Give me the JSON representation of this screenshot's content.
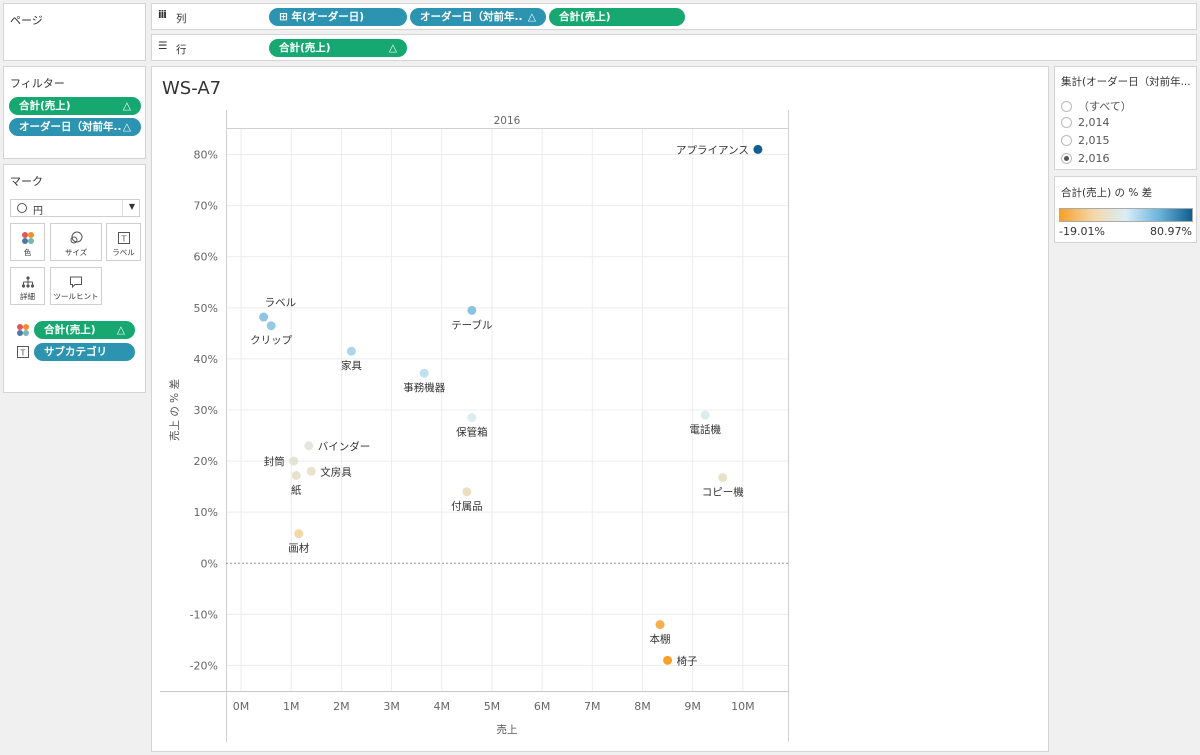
{
  "pages_panel": {
    "title": "ページ"
  },
  "columns_shelf": {
    "label": "列",
    "pills": [
      {
        "label": "⊞ 年(オーダー日)",
        "color": "#2c93b0",
        "delta": ""
      },
      {
        "label": "オーダー日（対前年..",
        "color": "#2c93b0",
        "delta": "△"
      },
      {
        "label": "合計(売上)",
        "color": "#17a872",
        "delta": ""
      }
    ]
  },
  "rows_shelf": {
    "label": "行",
    "pills": [
      {
        "label": "合計(売上)",
        "color": "#17a872",
        "delta": "△"
      }
    ]
  },
  "filters": {
    "title": "フィルター",
    "pills": [
      {
        "label": "合計(売上)",
        "color": "#17a872",
        "delta": "△"
      },
      {
        "label": "オーダー日（対前年..",
        "color": "#2c93b0",
        "delta": "△"
      }
    ]
  },
  "marks": {
    "title": "マーク",
    "mark_type": "円",
    "buttons": [
      {
        "label": "色",
        "icon": "color-dots-icon"
      },
      {
        "label": "サイズ",
        "icon": "size-icon"
      },
      {
        "label": "ラベル",
        "icon": "label-icon"
      },
      {
        "label": "詳細",
        "icon": "detail-icon"
      },
      {
        "label": "ツールヒント",
        "icon": "tooltip-icon"
      }
    ],
    "fields": [
      {
        "label": "合計(売上)",
        "color": "#17a872",
        "delta": "△",
        "icon": "color-dots-icon"
      },
      {
        "label": "サブカテゴリ",
        "color": "#2c93b0",
        "delta": "",
        "icon": "label-icon"
      }
    ]
  },
  "worksheet": {
    "title": "WS-A7",
    "column_header": "2016"
  },
  "filter_card": {
    "title": "集計(オーダー日（対前年...",
    "options": [
      "（すべて）",
      "2,014",
      "2,015",
      "2,016"
    ],
    "selected": "2,016"
  },
  "legend_card": {
    "title": "合計(売上) の % 差",
    "min_label": "-19.01%",
    "max_label": "80.97%",
    "gradient": [
      "#f7a02a",
      "#f5d7a8",
      "#d9eef7",
      "#6bb4dc",
      "#0e5f8f"
    ]
  },
  "chart_data": {
    "type": "scatter",
    "title": "WS-A7",
    "xlabel": "売上",
    "ylabel": "売上 の % 差",
    "xlim": [
      -0.3,
      10.9
    ],
    "ylim": [
      -25,
      85
    ],
    "x_ticks": [
      "0M",
      "1M",
      "2M",
      "3M",
      "4M",
      "5M",
      "6M",
      "7M",
      "8M",
      "9M",
      "10M"
    ],
    "y_ticks": [
      "-20%",
      "-10%",
      "0%",
      "10%",
      "20%",
      "30%",
      "40%",
      "50%",
      "60%",
      "70%",
      "80%"
    ],
    "x_unit": "M",
    "grid": true,
    "reference_line_y": 0,
    "points": [
      {
        "label": "アプライアンス",
        "x": 10.3,
        "y": 81,
        "label_pos": "left"
      },
      {
        "label": "ラベル",
        "x": 0.45,
        "y": 48.2,
        "label_pos": "above-right"
      },
      {
        "label": "クリップ",
        "x": 0.6,
        "y": 46.5,
        "label_pos": "below"
      },
      {
        "label": "テーブル",
        "x": 4.6,
        "y": 49.5,
        "label_pos": "below"
      },
      {
        "label": "家具",
        "x": 2.2,
        "y": 41.5,
        "label_pos": "below"
      },
      {
        "label": "事務機器",
        "x": 3.65,
        "y": 37.2,
        "label_pos": "below"
      },
      {
        "label": "保管箱",
        "x": 4.6,
        "y": 28.5,
        "label_pos": "below"
      },
      {
        "label": "電話機",
        "x": 9.25,
        "y": 29,
        "label_pos": "below"
      },
      {
        "label": "バインダー",
        "x": 1.35,
        "y": 23,
        "label_pos": "right"
      },
      {
        "label": "封筒",
        "x": 1.05,
        "y": 20,
        "label_pos": "left"
      },
      {
        "label": "文房具",
        "x": 1.4,
        "y": 18,
        "label_pos": "right"
      },
      {
        "label": "紙",
        "x": 1.1,
        "y": 17.2,
        "label_pos": "below"
      },
      {
        "label": "コピー機",
        "x": 9.6,
        "y": 16.8,
        "label_pos": "below"
      },
      {
        "label": "付属品",
        "x": 4.5,
        "y": 14,
        "label_pos": "below"
      },
      {
        "label": "画材",
        "x": 1.15,
        "y": 5.8,
        "label_pos": "below"
      },
      {
        "label": "本棚",
        "x": 8.35,
        "y": -12,
        "label_pos": "below"
      },
      {
        "label": "椅子",
        "x": 8.5,
        "y": -19,
        "label_pos": "right"
      }
    ]
  }
}
